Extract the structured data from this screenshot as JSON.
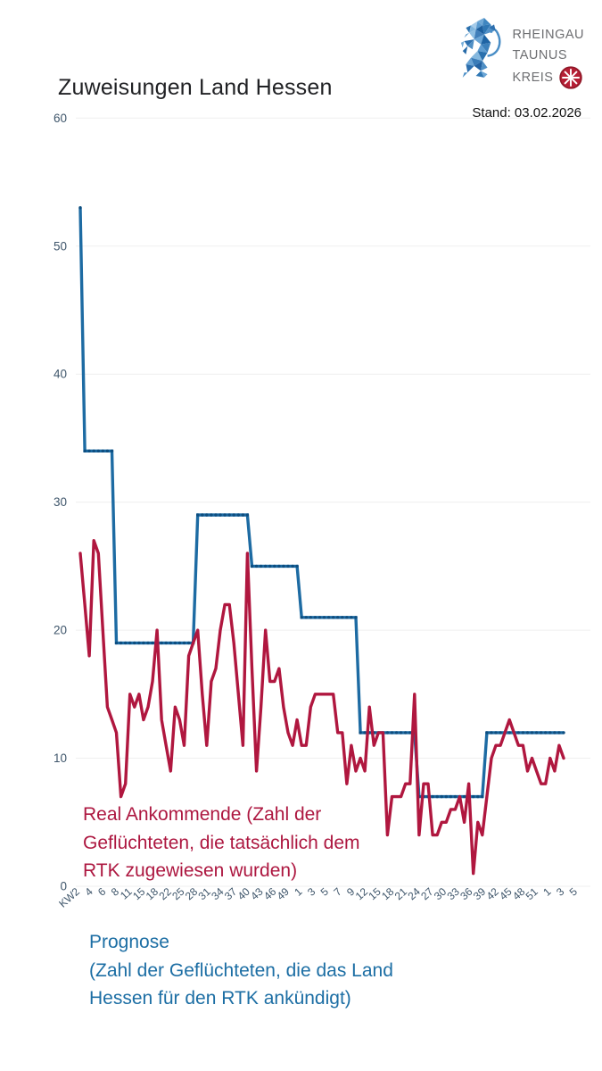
{
  "header": {
    "title": "Zuweisungen Land Hessen",
    "stand": "Stand: 03.02.2026",
    "logo": {
      "line1": "RHEINGAU",
      "line2": "TAUNUS",
      "line3": "KREIS"
    }
  },
  "legend": {
    "real": {
      "color": "#ad1740",
      "lines": [
        "Real Ankommende (Zahl der",
        "Geflüchteten, die tatsächlich dem",
        "RTK zugewiesen wurden)"
      ]
    },
    "prognose": {
      "color": "#1c6ea4",
      "lines": [
        "Prognose",
        "(Zahl der Geflüchteten, die das Land",
        "Hessen für den RTK ankündigt)"
      ]
    }
  },
  "chart_data": {
    "type": "line",
    "title": "Zuweisungen Land Hessen",
    "grid": "horizontal-only",
    "ylim": [
      0,
      60
    ],
    "y_ticks": [
      0,
      10,
      20,
      30,
      40,
      50,
      60
    ],
    "x_tick_labels": [
      "KW2",
      "4",
      "6",
      "8",
      "11",
      "15",
      "18",
      "22",
      "25",
      "28",
      "31",
      "34",
      "37",
      "40",
      "43",
      "46",
      "49",
      "1",
      "3",
      "5",
      "7",
      "9",
      "12",
      "15",
      "18",
      "21",
      "24",
      "27",
      "30",
      "33",
      "36",
      "39",
      "42",
      "45",
      "48",
      "51",
      "1",
      "3",
      "5"
    ],
    "n_points": 108,
    "series": [
      {
        "name": "Prognose (Zahl der Geflüchteten, die das Land Hessen für den RTK ankündigt)",
        "color": "#1d6ba3",
        "marker_color": "#0d4d7f",
        "values": [
          53,
          34,
          34,
          34,
          34,
          34,
          34,
          34,
          19,
          19,
          19,
          19,
          19,
          19,
          19,
          19,
          19,
          19,
          19,
          19,
          19,
          19,
          19,
          19,
          19,
          19,
          29,
          29,
          29,
          29,
          29,
          29,
          29,
          29,
          29,
          29,
          29,
          29,
          25,
          25,
          25,
          25,
          25,
          25,
          25,
          25,
          25,
          25,
          25,
          21,
          21,
          21,
          21,
          21,
          21,
          21,
          21,
          21,
          21,
          21,
          21,
          21,
          12,
          12,
          12,
          12,
          12,
          12,
          12,
          12,
          12,
          12,
          12,
          12,
          12,
          7,
          7,
          7,
          7,
          7,
          7,
          7,
          7,
          7,
          7,
          7,
          7,
          7,
          7,
          7,
          12,
          12,
          12,
          12,
          12,
          12,
          12,
          12,
          12,
          12,
          12,
          12,
          12,
          12,
          12,
          12,
          12,
          12
        ]
      },
      {
        "name": "Real Ankommende (Zahl der Geflüchteten, die tatsächlich dem RTK zugewiesen wurden)",
        "color": "#b0173f",
        "values": [
          26,
          22,
          18,
          27,
          26,
          20,
          14,
          13,
          12,
          7,
          8,
          15,
          14,
          15,
          13,
          14,
          16,
          20,
          13,
          11,
          9,
          14,
          13,
          11,
          18,
          19,
          20,
          15,
          11,
          16,
          17,
          20,
          22,
          22,
          19,
          15,
          11,
          26,
          17,
          9,
          14,
          20,
          16,
          16,
          17,
          14,
          12,
          11,
          13,
          11,
          11,
          14,
          15,
          15,
          15,
          15,
          15,
          12,
          12,
          8,
          11,
          9,
          10,
          9,
          14,
          11,
          12,
          12,
          4,
          7,
          7,
          7,
          8,
          8,
          15,
          4,
          8,
          8,
          4,
          4,
          5,
          5,
          6,
          6,
          7,
          5,
          8,
          1,
          5,
          4,
          7,
          10,
          11,
          11,
          12,
          13,
          12,
          11,
          11,
          9,
          10,
          9,
          8,
          8,
          10,
          9,
          11,
          10
        ]
      }
    ]
  }
}
